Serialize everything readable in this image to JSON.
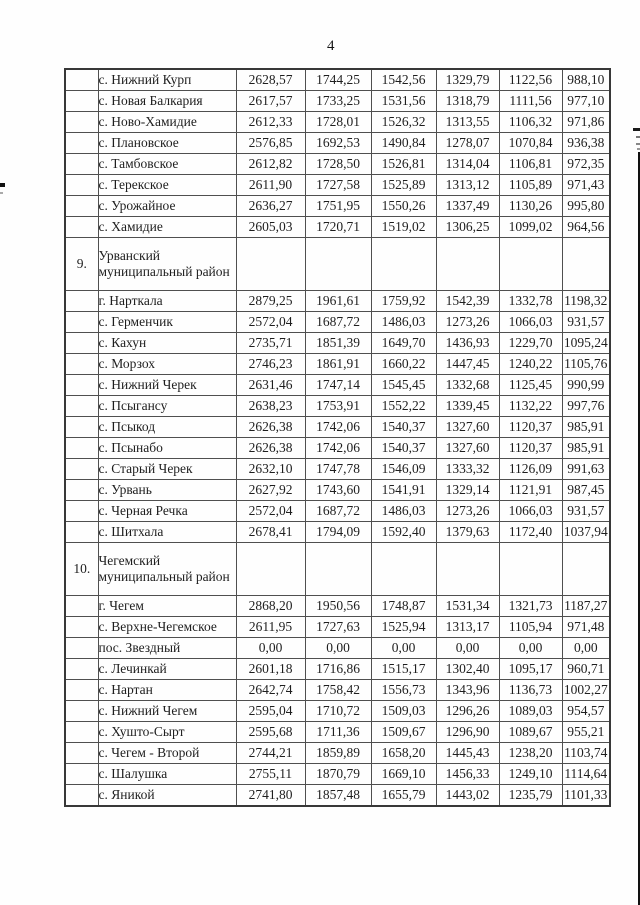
{
  "page": {
    "number": "4"
  },
  "colors": {
    "ink": "#1e1e1e",
    "border": "#4f4f4f",
    "outer_border": "#383838",
    "background": "#fefefe"
  },
  "table": {
    "rows": [
      {
        "num": "",
        "name": "с. Нижний Курп",
        "district": false,
        "values": [
          "2628,57",
          "1744,25",
          "1542,56",
          "1329,79",
          "1122,56",
          "988,10"
        ]
      },
      {
        "num": "",
        "name": "с. Новая Балкария",
        "district": false,
        "values": [
          "2617,57",
          "1733,25",
          "1531,56",
          "1318,79",
          "1111,56",
          "977,10"
        ]
      },
      {
        "num": "",
        "name": "с. Ново-Хамидие",
        "district": false,
        "values": [
          "2612,33",
          "1728,01",
          "1526,32",
          "1313,55",
          "1106,32",
          "971,86"
        ]
      },
      {
        "num": "",
        "name": "с. Плановское",
        "district": false,
        "values": [
          "2576,85",
          "1692,53",
          "1490,84",
          "1278,07",
          "1070,84",
          "936,38"
        ]
      },
      {
        "num": "",
        "name": "с. Тамбовское",
        "district": false,
        "values": [
          "2612,82",
          "1728,50",
          "1526,81",
          "1314,04",
          "1106,81",
          "972,35"
        ]
      },
      {
        "num": "",
        "name": "с. Терекское",
        "district": false,
        "values": [
          "2611,90",
          "1727,58",
          "1525,89",
          "1313,12",
          "1105,89",
          "971,43"
        ]
      },
      {
        "num": "",
        "name": "с. Урожайное",
        "district": false,
        "values": [
          "2636,27",
          "1751,95",
          "1550,26",
          "1337,49",
          "1130,26",
          "995,80"
        ]
      },
      {
        "num": "",
        "name": "с. Хамидие",
        "district": false,
        "values": [
          "2605,03",
          "1720,71",
          "1519,02",
          "1306,25",
          "1099,02",
          "964,56"
        ]
      },
      {
        "num": "9.",
        "name": "Урванский муниципальный район",
        "district": true,
        "values": [
          "",
          "",
          "",
          "",
          "",
          ""
        ]
      },
      {
        "num": "",
        "name": "г. Нарткала",
        "district": false,
        "values": [
          "2879,25",
          "1961,61",
          "1759,92",
          "1542,39",
          "1332,78",
          "1198,32"
        ]
      },
      {
        "num": "",
        "name": "с. Герменчик",
        "district": false,
        "values": [
          "2572,04",
          "1687,72",
          "1486,03",
          "1273,26",
          "1066,03",
          "931,57"
        ]
      },
      {
        "num": "",
        "name": "с. Кахун",
        "district": false,
        "values": [
          "2735,71",
          "1851,39",
          "1649,70",
          "1436,93",
          "1229,70",
          "1095,24"
        ]
      },
      {
        "num": "",
        "name": "с. Морзох",
        "district": false,
        "values": [
          "2746,23",
          "1861,91",
          "1660,22",
          "1447,45",
          "1240,22",
          "1105,76"
        ]
      },
      {
        "num": "",
        "name": "с. Нижний Черек",
        "district": false,
        "values": [
          "2631,46",
          "1747,14",
          "1545,45",
          "1332,68",
          "1125,45",
          "990,99"
        ]
      },
      {
        "num": "",
        "name": "с. Псыгансу",
        "district": false,
        "values": [
          "2638,23",
          "1753,91",
          "1552,22",
          "1339,45",
          "1132,22",
          "997,76"
        ]
      },
      {
        "num": "",
        "name": "с. Псыкод",
        "district": false,
        "values": [
          "2626,38",
          "1742,06",
          "1540,37",
          "1327,60",
          "1120,37",
          "985,91"
        ]
      },
      {
        "num": "",
        "name": "с. Псынабо",
        "district": false,
        "values": [
          "2626,38",
          "1742,06",
          "1540,37",
          "1327,60",
          "1120,37",
          "985,91"
        ]
      },
      {
        "num": "",
        "name": "с. Старый Черек",
        "district": false,
        "values": [
          "2632,10",
          "1747,78",
          "1546,09",
          "1333,32",
          "1126,09",
          "991,63"
        ]
      },
      {
        "num": "",
        "name": "с. Урвань",
        "district": false,
        "values": [
          "2627,92",
          "1743,60",
          "1541,91",
          "1329,14",
          "1121,91",
          "987,45"
        ]
      },
      {
        "num": "",
        "name": "с. Черная Речка",
        "district": false,
        "values": [
          "2572,04",
          "1687,72",
          "1486,03",
          "1273,26",
          "1066,03",
          "931,57"
        ]
      },
      {
        "num": "",
        "name": "с. Шитхала",
        "district": false,
        "values": [
          "2678,41",
          "1794,09",
          "1592,40",
          "1379,63",
          "1172,40",
          "1037,94"
        ]
      },
      {
        "num": "10.",
        "name": "Чегемский муниципальный район",
        "district": true,
        "values": [
          "",
          "",
          "",
          "",
          "",
          ""
        ]
      },
      {
        "num": "",
        "name": "г. Чегем",
        "district": false,
        "values": [
          "2868,20",
          "1950,56",
          "1748,87",
          "1531,34",
          "1321,73",
          "1187,27"
        ]
      },
      {
        "num": "",
        "name": "с. Верхне-Чегемское",
        "district": false,
        "values": [
          "2611,95",
          "1727,63",
          "1525,94",
          "1313,17",
          "1105,94",
          "971,48"
        ]
      },
      {
        "num": "",
        "name": "пос. Звездный",
        "district": false,
        "values": [
          "0,00",
          "0,00",
          "0,00",
          "0,00",
          "0,00",
          "0,00"
        ]
      },
      {
        "num": "",
        "name": "с. Лечинкай",
        "district": false,
        "values": [
          "2601,18",
          "1716,86",
          "1515,17",
          "1302,40",
          "1095,17",
          "960,71"
        ]
      },
      {
        "num": "",
        "name": "с. Нартан",
        "district": false,
        "values": [
          "2642,74",
          "1758,42",
          "1556,73",
          "1343,96",
          "1136,73",
          "1002,27"
        ]
      },
      {
        "num": "",
        "name": "с. Нижний Чегем",
        "district": false,
        "values": [
          "2595,04",
          "1710,72",
          "1509,03",
          "1296,26",
          "1089,03",
          "954,57"
        ]
      },
      {
        "num": "",
        "name": "с. Хушто-Сырт",
        "district": false,
        "values": [
          "2595,68",
          "1711,36",
          "1509,67",
          "1296,90",
          "1089,67",
          "955,21"
        ]
      },
      {
        "num": "",
        "name": "с. Чегем - Второй",
        "district": false,
        "values": [
          "2744,21",
          "1859,89",
          "1658,20",
          "1445,43",
          "1238,20",
          "1103,74"
        ]
      },
      {
        "num": "",
        "name": "с. Шалушка",
        "district": false,
        "values": [
          "2755,11",
          "1870,79",
          "1669,10",
          "1456,33",
          "1249,10",
          "1114,64"
        ]
      },
      {
        "num": "",
        "name": "с. Яникой",
        "district": false,
        "values": [
          "2741,80",
          "1857,48",
          "1655,79",
          "1443,02",
          "1235,79",
          "1101,33"
        ]
      }
    ]
  }
}
